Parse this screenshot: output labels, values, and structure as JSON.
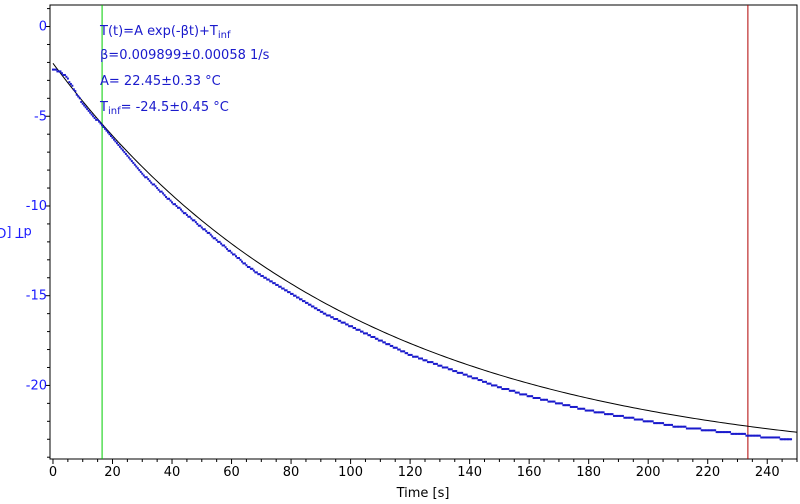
{
  "chart_data": {
    "type": "scatter",
    "xlabel": "Time [s]",
    "ylabel": "dT [C]",
    "xlim": [
      -1,
      250
    ],
    "ylim": [
      -24.1,
      1.2
    ],
    "xticks": [
      0,
      20,
      40,
      60,
      80,
      100,
      120,
      140,
      160,
      180,
      200,
      220,
      240
    ],
    "yticks": [
      0,
      -5,
      -10,
      -15,
      -20
    ],
    "grid": false,
    "fit": {
      "model": "T(t)=A exp(-βt)+T_inf",
      "A": 22.45,
      "beta": 0.009899,
      "T_inf": -24.5
    },
    "data_series": {
      "x": [
        0,
        2,
        4,
        6,
        8,
        10,
        12,
        14,
        16,
        18,
        20,
        25,
        30,
        35,
        40,
        45,
        50,
        55,
        60,
        65,
        70,
        75,
        80,
        85,
        90,
        95,
        100,
        110,
        120,
        130,
        140,
        150,
        160,
        170,
        180,
        190,
        200,
        210,
        220,
        230,
        240,
        248
      ],
      "y": [
        -2.4,
        -2.5,
        -2.7,
        -3.2,
        -3.8,
        -4.3,
        -4.7,
        -5.1,
        -5.4,
        -5.8,
        -6.2,
        -7.2,
        -8.2,
        -9.0,
        -9.8,
        -10.5,
        -11.2,
        -11.9,
        -12.6,
        -13.3,
        -13.9,
        -14.4,
        -14.9,
        -15.4,
        -15.9,
        -16.3,
        -16.7,
        -17.5,
        -18.3,
        -18.9,
        -19.5,
        -20.1,
        -20.6,
        -21.0,
        -21.4,
        -21.7,
        -22.0,
        -22.3,
        -22.5,
        -22.7,
        -22.9,
        -23.0
      ]
    },
    "markers": [
      {
        "name": "fit-start",
        "x": 16.5,
        "color": "#00cc00"
      },
      {
        "name": "fit-end",
        "x": 233.5,
        "color": "#b00000"
      }
    ],
    "annotations": {
      "formula_main": "T(t)=A exp(-βt)+T",
      "formula_sub": "inf",
      "beta": "β=0.009899±0.00058 1/s",
      "amp": "A= 22.45±0.33 °C",
      "tinf_main": "T",
      "tinf_sub": "inf",
      "tinf_rest": "= -24.5±0.45 °C"
    },
    "colors": {
      "data": "#1a1acc",
      "fit": "#000000",
      "axis": "#000000",
      "y_tick_text": "#1a1aff"
    }
  }
}
